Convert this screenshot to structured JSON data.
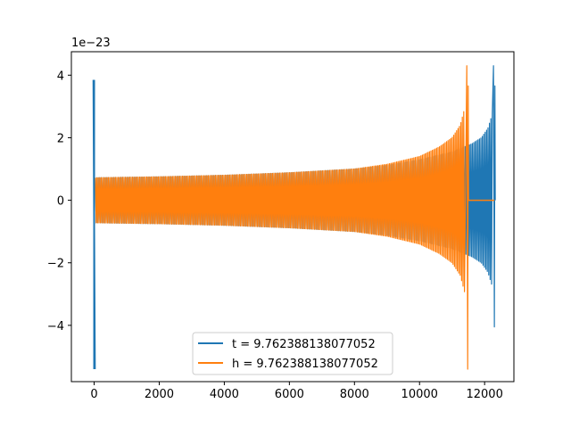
{
  "chart_data": {
    "type": "line",
    "title": "",
    "xlabel": "",
    "ylabel": "",
    "y_offset_text": "1e−23",
    "xlim": [
      -700,
      12900
    ],
    "ylim": [
      -5.8,
      4.75
    ],
    "x_ticks": [
      0,
      2000,
      4000,
      6000,
      8000,
      10000,
      12000
    ],
    "x_tick_labels": [
      "0",
      "2000",
      "4000",
      "6000",
      "8000",
      "10000",
      "12000"
    ],
    "y_ticks": [
      -4,
      -2,
      0,
      2,
      4
    ],
    "y_tick_labels": [
      "−4",
      "−2",
      "0",
      "2",
      "4"
    ],
    "grid": false,
    "legend_position": "lower-center",
    "series": [
      {
        "name": "t = 9.762388138077052",
        "color": "#1f77b4",
        "shape": "oscillating chirp signal",
        "spike_start": {
          "x": 0,
          "max": 3.85,
          "min": -5.4
        },
        "envelope": [
          {
            "x": 40,
            "amp": 0.72
          },
          {
            "x": 2000,
            "amp": 0.75
          },
          {
            "x": 4000,
            "amp": 0.8
          },
          {
            "x": 6000,
            "amp": 0.88
          },
          {
            "x": 8000,
            "amp": 1.0
          },
          {
            "x": 9000,
            "amp": 1.12
          },
          {
            "x": 10000,
            "amp": 1.3
          },
          {
            "x": 11000,
            "amp": 1.55
          },
          {
            "x": 11600,
            "amp": 1.8
          },
          {
            "x": 11900,
            "amp": 2.0
          },
          {
            "x": 12100,
            "amp": 2.3
          },
          {
            "x": 12250,
            "amp": 2.8
          }
        ],
        "spike_end": {
          "x": 12300,
          "max": 4.3,
          "min": -4.05
        }
      },
      {
        "name": "h = 9.762388138077052",
        "color": "#ff7f0e",
        "shape": "oscillating chirp signal",
        "envelope": [
          {
            "x": 40,
            "amp": 0.72
          },
          {
            "x": 2000,
            "amp": 0.75
          },
          {
            "x": 4000,
            "amp": 0.8
          },
          {
            "x": 6000,
            "amp": 0.88
          },
          {
            "x": 8000,
            "amp": 1.0
          },
          {
            "x": 9000,
            "amp": 1.15
          },
          {
            "x": 10000,
            "amp": 1.4
          },
          {
            "x": 10600,
            "amp": 1.7
          },
          {
            "x": 11000,
            "amp": 2.0
          },
          {
            "x": 11250,
            "amp": 2.4
          },
          {
            "x": 11400,
            "amp": 3.0
          }
        ],
        "spike_end": {
          "x": 11480,
          "max": 4.3,
          "min": -5.4
        },
        "flat_after": {
          "x_start": 11500,
          "x_end": 12300,
          "y": 0
        }
      }
    ]
  }
}
